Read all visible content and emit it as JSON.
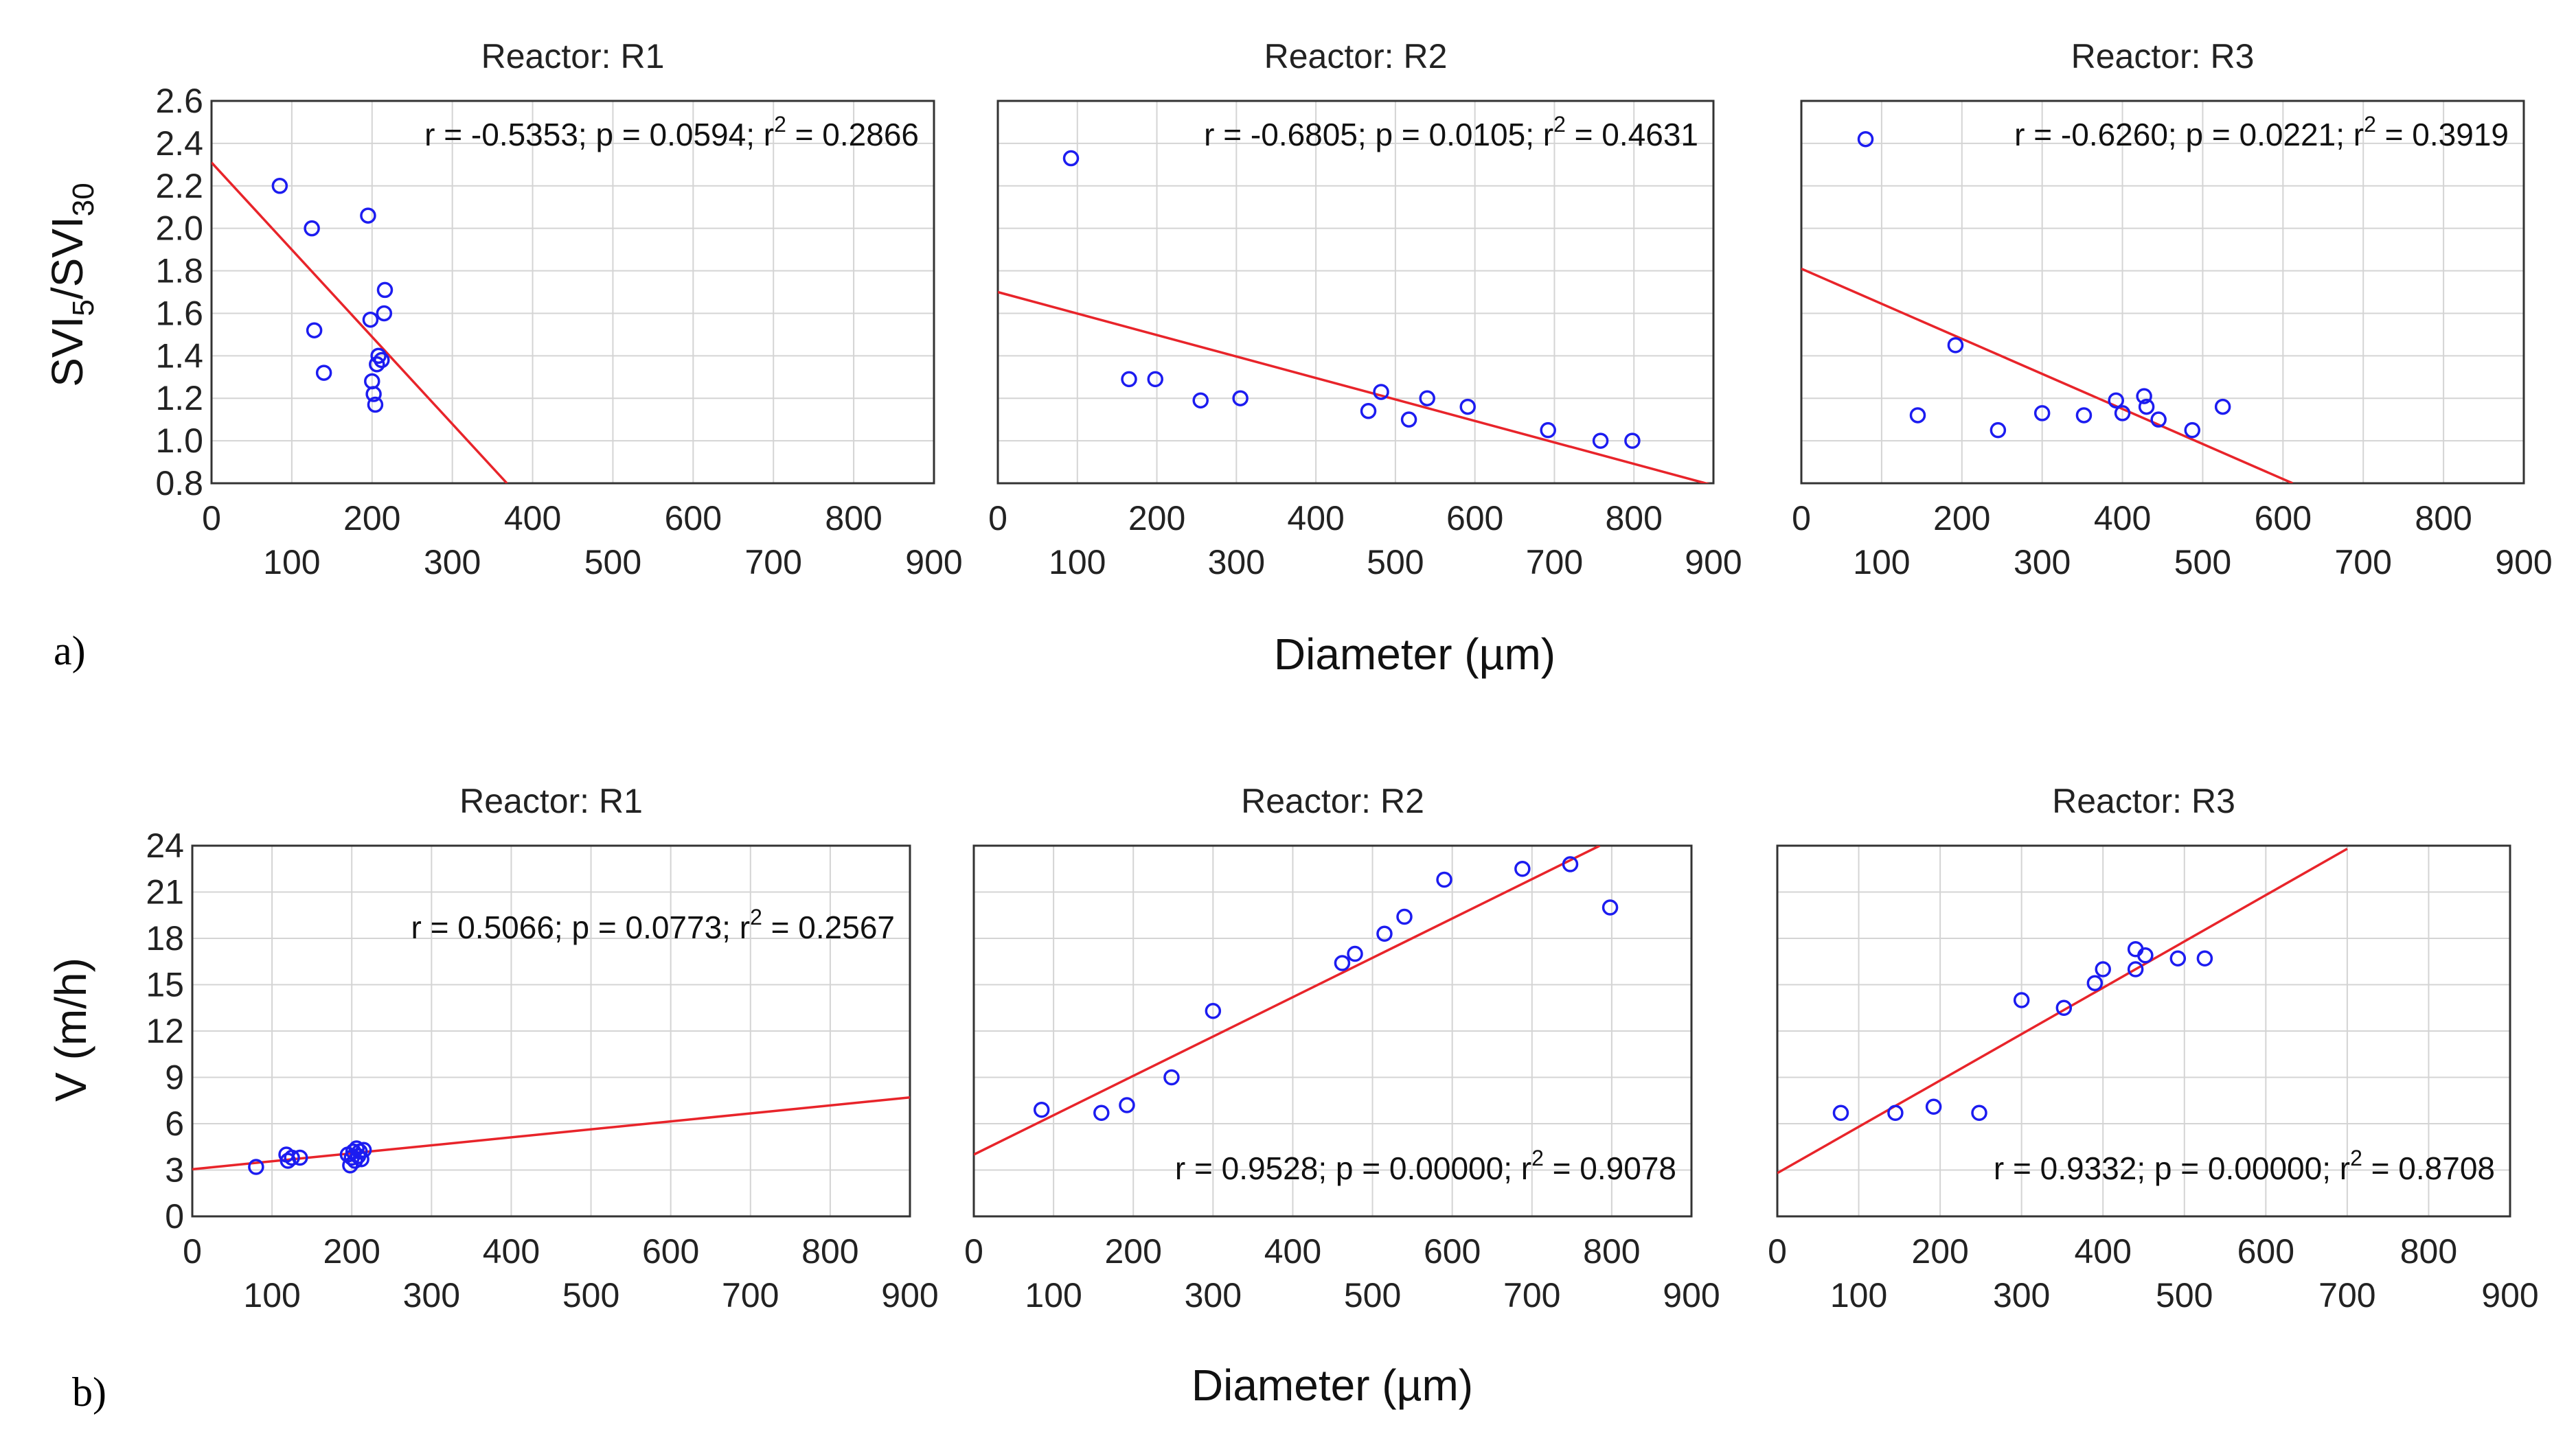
{
  "colors": {
    "points": "#1c1cf0",
    "fit_line": "#e8242a",
    "grid": "#d4d4d4",
    "axes": "#333333"
  },
  "chart_data": [
    {
      "panel": "a-R1",
      "type": "scatter",
      "title": "Reactor: R1",
      "xlabel": "Diameter (µm)",
      "ylabel": "SVI5/SVI30",
      "xlim": [
        0,
        900
      ],
      "ylim": [
        0.8,
        2.6
      ],
      "xticks_major": [
        "0",
        "200",
        "400",
        "600",
        "800"
      ],
      "xticks_minor": [
        "100",
        "300",
        "500",
        "700",
        "900"
      ],
      "yticks": [
        "0.8",
        "1.0",
        "1.2",
        "1.4",
        "1.6",
        "1.8",
        "2.0",
        "2.2",
        "2.4",
        "2.6"
      ],
      "annotation": {
        "prefix": "r = -0.5353; p = 0.0594; r",
        "sup": "2",
        "suffix": " = 0.2866"
      },
      "points": [
        [
          85,
          2.2
        ],
        [
          125,
          2.0
        ],
        [
          128,
          1.52
        ],
        [
          140,
          1.32
        ],
        [
          195,
          2.06
        ],
        [
          198,
          1.57
        ],
        [
          200,
          1.28
        ],
        [
          202,
          1.22
        ],
        [
          204,
          1.17
        ],
        [
          206,
          1.36
        ],
        [
          208,
          1.4
        ],
        [
          212,
          1.38
        ],
        [
          215,
          1.6
        ],
        [
          216,
          1.71
        ]
      ],
      "fit": [
        [
          0,
          2.31
        ],
        [
          368,
          0.8
        ]
      ]
    },
    {
      "panel": "a-R2",
      "type": "scatter",
      "title": "Reactor: R2",
      "xlabel": "Diameter (µm)",
      "ylabel": "SVI5/SVI30",
      "xlim": [
        0,
        900
      ],
      "ylim": [
        0.8,
        2.6
      ],
      "xticks_major": [
        "0",
        "200",
        "400",
        "600",
        "800"
      ],
      "xticks_minor": [
        "100",
        "300",
        "500",
        "700",
        "900"
      ],
      "yticks": [
        "0.8",
        "1.0",
        "1.2",
        "1.4",
        "1.6",
        "1.8",
        "2.0",
        "2.2",
        "2.4",
        "2.6"
      ],
      "annotation": {
        "prefix": "r = -0.6805; p = 0.0105; r",
        "sup": "2",
        "suffix": " = 0.4631"
      },
      "points": [
        [
          92,
          2.33
        ],
        [
          165,
          1.29
        ],
        [
          198,
          1.29
        ],
        [
          255,
          1.19
        ],
        [
          305,
          1.2
        ],
        [
          466,
          1.14
        ],
        [
          482,
          1.23
        ],
        [
          517,
          1.1
        ],
        [
          540,
          1.2
        ],
        [
          591,
          1.16
        ],
        [
          692,
          1.05
        ],
        [
          758,
          1.0
        ],
        [
          798,
          1.0
        ]
      ],
      "fit": [
        [
          0,
          1.7
        ],
        [
          900,
          0.79
        ]
      ]
    },
    {
      "panel": "a-R3",
      "type": "scatter",
      "title": "Reactor: R3",
      "xlabel": "Diameter (µm)",
      "ylabel": "SVI5/SVI30",
      "xlim": [
        0,
        900
      ],
      "ylim": [
        0.8,
        2.6
      ],
      "xticks_major": [
        "0",
        "200",
        "400",
        "600",
        "800"
      ],
      "xticks_minor": [
        "100",
        "300",
        "500",
        "700",
        "900"
      ],
      "yticks": [
        "0.8",
        "1.0",
        "1.2",
        "1.4",
        "1.6",
        "1.8",
        "2.0",
        "2.2",
        "2.4",
        "2.6"
      ],
      "annotation": {
        "prefix": "r = -0.6260; p = 0.0221; r",
        "sup": "2",
        "suffix": " = 0.3919"
      },
      "points": [
        [
          80,
          2.42
        ],
        [
          145,
          1.12
        ],
        [
          192,
          1.45
        ],
        [
          245,
          1.05
        ],
        [
          300,
          1.13
        ],
        [
          352,
          1.12
        ],
        [
          392,
          1.19
        ],
        [
          400,
          1.13
        ],
        [
          427,
          1.21
        ],
        [
          430,
          1.16
        ],
        [
          445,
          1.1
        ],
        [
          487,
          1.05
        ],
        [
          525,
          1.16
        ]
      ],
      "fit": [
        [
          0,
          1.81
        ],
        [
          612,
          0.8
        ]
      ]
    },
    {
      "panel": "b-R1",
      "type": "scatter",
      "title": "Reactor: R1",
      "xlabel": "Diameter (µm)",
      "ylabel": "V (m/h)",
      "xlim": [
        0,
        900
      ],
      "ylim": [
        0,
        24
      ],
      "xticks_major": [
        "0",
        "200",
        "400",
        "600",
        "800"
      ],
      "xticks_minor": [
        "100",
        "300",
        "500",
        "700",
        "900"
      ],
      "yticks": [
        "0",
        "3",
        "6",
        "9",
        "12",
        "15",
        "18",
        "21",
        "24"
      ],
      "annotation": {
        "prefix": "r = 0.5066; p = 0.0773; r",
        "sup": "2",
        "suffix": " = 0.2567"
      },
      "points": [
        [
          80,
          3.2
        ],
        [
          118,
          4.0
        ],
        [
          120,
          3.6
        ],
        [
          125,
          3.8
        ],
        [
          135,
          3.8
        ],
        [
          195,
          4.0
        ],
        [
          198,
          3.3
        ],
        [
          200,
          3.8
        ],
        [
          202,
          4.2
        ],
        [
          204,
          3.6
        ],
        [
          206,
          4.4
        ],
        [
          208,
          3.9
        ],
        [
          210,
          4.2
        ],
        [
          212,
          3.7
        ],
        [
          215,
          4.3
        ]
      ],
      "fit": [
        [
          0,
          3.05
        ],
        [
          900,
          7.7
        ]
      ]
    },
    {
      "panel": "b-R2",
      "type": "scatter",
      "title": "Reactor: R2",
      "xlabel": "Diameter (µm)",
      "ylabel": "V (m/h)",
      "xlim": [
        0,
        900
      ],
      "ylim": [
        0,
        24
      ],
      "xticks_major": [
        "0",
        "200",
        "400",
        "600",
        "800"
      ],
      "xticks_minor": [
        "100",
        "300",
        "500",
        "700",
        "900"
      ],
      "yticks": [
        "0",
        "3",
        "6",
        "9",
        "12",
        "15",
        "18",
        "21",
        "24"
      ],
      "annotation": {
        "prefix": "r = 0.9528; p = 0.00000; r",
        "sup": "2",
        "suffix": " = 0.9078"
      },
      "points": [
        [
          85,
          6.9
        ],
        [
          160,
          6.7
        ],
        [
          192,
          7.2
        ],
        [
          248,
          9.0
        ],
        [
          300,
          13.3
        ],
        [
          462,
          16.4
        ],
        [
          478,
          17.0
        ],
        [
          515,
          18.3
        ],
        [
          540,
          19.4
        ],
        [
          590,
          21.8
        ],
        [
          688,
          22.5
        ],
        [
          748,
          22.8
        ],
        [
          798,
          20.0
        ]
      ],
      "fit": [
        [
          0,
          4.0
        ],
        [
          785,
          24.0
        ]
      ]
    },
    {
      "panel": "b-R3",
      "type": "scatter",
      "title": "Reactor: R3",
      "xlabel": "Diameter (µm)",
      "ylabel": "V (m/h)",
      "xlim": [
        0,
        900
      ],
      "ylim": [
        0,
        24
      ],
      "xticks_major": [
        "0",
        "200",
        "400",
        "600",
        "800"
      ],
      "xticks_minor": [
        "100",
        "300",
        "500",
        "700",
        "900"
      ],
      "yticks": [
        "0",
        "3",
        "6",
        "9",
        "12",
        "15",
        "18",
        "21",
        "24"
      ],
      "annotation": {
        "prefix": "r = 0.9332; p = 0.00000; r",
        "sup": "2",
        "suffix": " = 0.8708"
      },
      "points": [
        [
          78,
          6.7
        ],
        [
          145,
          6.7
        ],
        [
          192,
          7.1
        ],
        [
          248,
          6.7
        ],
        [
          300,
          14.0
        ],
        [
          352,
          13.5
        ],
        [
          390,
          15.1
        ],
        [
          400,
          16.0
        ],
        [
          440,
          16.0
        ],
        [
          440,
          17.3
        ],
        [
          452,
          16.9
        ],
        [
          492,
          16.7
        ],
        [
          525,
          16.7
        ]
      ],
      "fit": [
        [
          0,
          2.8
        ],
        [
          700,
          23.8
        ]
      ]
    }
  ],
  "row_labels": [
    "a)",
    "b)"
  ],
  "shared_xlabel": [
    "Diameter (µm)",
    "Diameter (µm)"
  ],
  "shared_ylabel_a": {
    "main": "SVI",
    "sub1": "5",
    "mid": "/SVI",
    "sub2": "30"
  },
  "shared_ylabel_b": "V (m/h)"
}
